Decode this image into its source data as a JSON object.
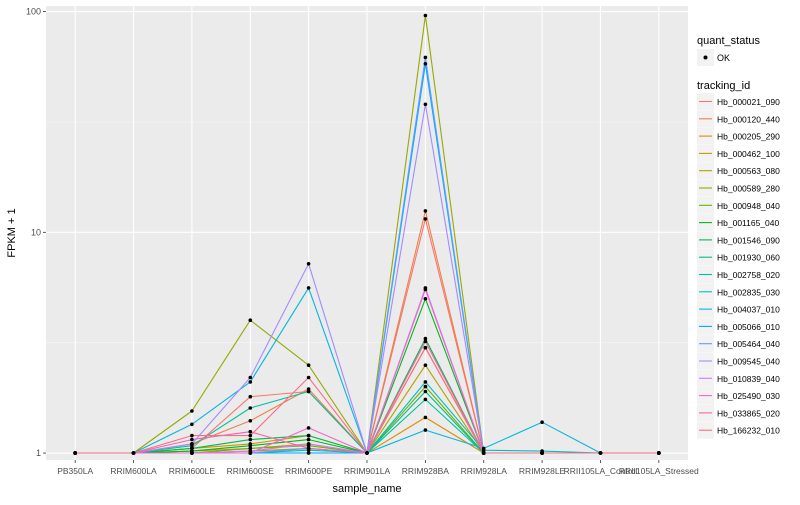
{
  "chart_data": {
    "type": "line",
    "xlabel": "sample_name",
    "ylabel": "FPKM + 1",
    "y_scale": "log",
    "ylim": [
      0.93,
      106
    ],
    "y_ticks": [
      {
        "value": 1,
        "label": "1"
      },
      {
        "value": 10,
        "label": "10"
      },
      {
        "value": 100,
        "label": "100"
      }
    ],
    "grid": true,
    "legend_position": "right",
    "categories": [
      "PB350LA",
      "RRIM600LA",
      "RRIM600LE",
      "RRIM600SE",
      "RRIM600PE",
      "RRIM901LA",
      "RRIM928BA",
      "RRIM928LA",
      "RRIM928LE",
      "RRII105LA_Control",
      "RRII105LA_Stressed"
    ],
    "legend_shape": {
      "title": "quant_status",
      "entries": [
        "OK"
      ]
    },
    "legend_color": {
      "title": "tracking_id"
    },
    "series": [
      {
        "name": "Hb_000021_090",
        "color": "#F8766D",
        "values": [
          1,
          1,
          1.05,
          1.8,
          1.9,
          1,
          11.5,
          1,
          1,
          1,
          1
        ]
      },
      {
        "name": "Hb_000120_440",
        "color": "#EF7F49",
        "values": [
          1,
          1,
          1.1,
          1.4,
          1.95,
          1,
          12.5,
          1,
          1,
          1,
          1
        ]
      },
      {
        "name": "Hb_000205_290",
        "color": "#DE8C00",
        "values": [
          1,
          1,
          1.05,
          1.1,
          1.2,
          1,
          1.45,
          1,
          1,
          1,
          1
        ]
      },
      {
        "name": "Hb_000462_100",
        "color": "#C99800",
        "values": [
          1,
          1,
          1.02,
          1.05,
          1.1,
          1,
          3.0,
          1,
          1,
          1,
          1
        ]
      },
      {
        "name": "Hb_000563_080",
        "color": "#B3A000",
        "values": [
          1,
          1,
          1.0,
          1.02,
          1.05,
          1,
          2.5,
          1,
          1,
          1,
          1
        ]
      },
      {
        "name": "Hb_000589_280",
        "color": "#97A900",
        "values": [
          1,
          1,
          1.55,
          4.0,
          2.5,
          1,
          96,
          1,
          1,
          1,
          1
        ]
      },
      {
        "name": "Hb_000948_040",
        "color": "#6FB000",
        "values": [
          1,
          1,
          1.0,
          1.05,
          1.08,
          1,
          2.0,
          1,
          1,
          1,
          1
        ]
      },
      {
        "name": "Hb_001165_040",
        "color": "#00B81F",
        "values": [
          1,
          1,
          1.02,
          1.08,
          1.15,
          1,
          5.0,
          1,
          1,
          1,
          1
        ]
      },
      {
        "name": "Hb_001546_090",
        "color": "#00BB4E",
        "values": [
          1,
          1,
          1.05,
          1.15,
          1.2,
          1,
          3.3,
          1,
          1,
          1,
          1
        ]
      },
      {
        "name": "Hb_001930_060",
        "color": "#00BF7D",
        "values": [
          1,
          1,
          1.0,
          1.0,
          1.0,
          1,
          1.9,
          1,
          1,
          1,
          1
        ]
      },
      {
        "name": "Hb_002758_020",
        "color": "#00C0A3",
        "values": [
          1,
          1,
          1.08,
          1.6,
          1.9,
          1,
          1.75,
          1,
          1,
          1,
          1
        ]
      },
      {
        "name": "Hb_002835_030",
        "color": "#00BEC4",
        "values": [
          1,
          1,
          1.0,
          1.0,
          1.03,
          1,
          2.1,
          1.03,
          1.02,
          1,
          1
        ]
      },
      {
        "name": "Hb_004037_010",
        "color": "#00B7E1",
        "values": [
          1,
          1,
          1.35,
          2.1,
          5.6,
          1,
          1.27,
          1.05,
          1.38,
          1,
          1
        ]
      },
      {
        "name": "Hb_005066_010",
        "color": "#00ABFD",
        "values": [
          1,
          1,
          1.0,
          1.0,
          1.0,
          1,
          58,
          1,
          1,
          1,
          1
        ]
      },
      {
        "name": "Hb_005464_040",
        "color": "#619CFF",
        "values": [
          1,
          1,
          1.0,
          1.0,
          1.05,
          1,
          62,
          1,
          1,
          1,
          1
        ]
      },
      {
        "name": "Hb_009545_040",
        "color": "#A58AFF",
        "values": [
          1,
          1,
          1.1,
          2.2,
          7.2,
          1,
          38,
          1,
          1,
          1,
          1
        ]
      },
      {
        "name": "Hb_010839_040",
        "color": "#D078FF",
        "values": [
          1,
          1,
          1.0,
          1.02,
          1.1,
          1,
          5.6,
          1,
          1,
          1,
          1
        ]
      },
      {
        "name": "Hb_025490_030",
        "color": "#EB6ACE",
        "values": [
          1,
          1,
          1.0,
          1.0,
          1.3,
          1,
          5.5,
          1,
          1,
          1,
          1
        ]
      },
      {
        "name": "Hb_033865_020",
        "color": "#F765A9",
        "values": [
          1,
          1,
          1.15,
          1.25,
          1.05,
          1,
          3.2,
          1,
          1,
          1,
          1
        ]
      },
      {
        "name": "Hb_166232_010",
        "color": "#FA6E86",
        "values": [
          1,
          1,
          1.2,
          1.2,
          2.2,
          1,
          3.0,
          1,
          1,
          1,
          1
        ]
      }
    ]
  }
}
